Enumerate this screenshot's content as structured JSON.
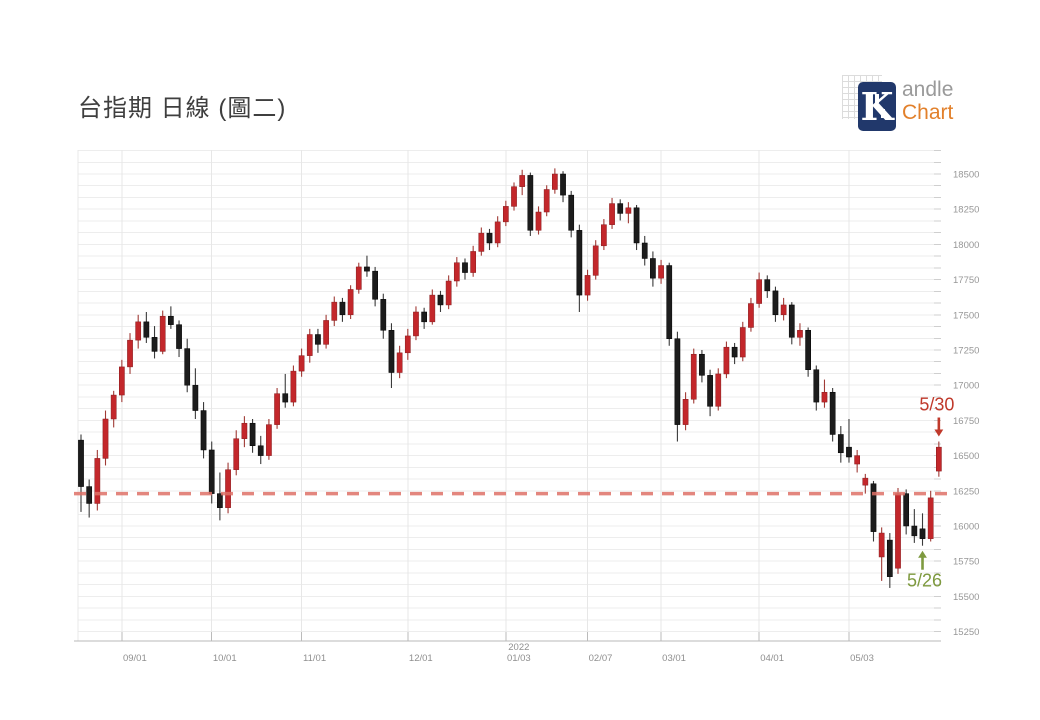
{
  "page": {
    "title": "台指期 日線 (圖二)"
  },
  "logo": {
    "k": "K",
    "line1": "andle",
    "line2": "Chart",
    "box_color": "#21386b",
    "line1_color": "#9a9a9a",
    "line2_color": "#e2802b"
  },
  "chart_data": {
    "type": "candlestick",
    "title": "台指期 日線 (圖二)",
    "grid": true,
    "up_color": "#c3272b",
    "down_color": "#1c1c1c",
    "y_axis": {
      "min": 15250,
      "max": 18500,
      "tick_step": 250,
      "ticks": [
        15250,
        15500,
        15750,
        16000,
        16250,
        16500,
        16750,
        17000,
        17250,
        17500,
        17750,
        18000,
        18250,
        18500
      ],
      "label_color": "#979797"
    },
    "x_axis": {
      "label_color": "#8f8f8f",
      "labels": [
        {
          "text": "09/01",
          "index": 5
        },
        {
          "text": "10/01",
          "index": 16
        },
        {
          "text": "11/01",
          "index": 27
        },
        {
          "text": "12/01",
          "index": 40
        },
        {
          "text": "01/03",
          "year_above": "2022",
          "index": 52
        },
        {
          "text": "02/07",
          "index": 62
        },
        {
          "text": "03/01",
          "index": 71
        },
        {
          "text": "04/01",
          "index": 83
        },
        {
          "text": "05/03",
          "index": 94
        }
      ]
    },
    "support_line": {
      "price": 16230,
      "color": "#df7168",
      "style": "dashed"
    },
    "annotations": [
      {
        "text": "5/30",
        "color": "#c0392b",
        "index": 105,
        "direction": "down"
      },
      {
        "text": "5/26",
        "color": "#7e9a3f",
        "index": 103,
        "direction": "up"
      }
    ],
    "candles": [
      [
        16610,
        16650,
        16100,
        16280
      ],
      [
        16280,
        16330,
        16060,
        16160
      ],
      [
        16160,
        16540,
        16110,
        16480
      ],
      [
        16480,
        16820,
        16430,
        16760
      ],
      [
        16760,
        16960,
        16700,
        16930
      ],
      [
        16930,
        17180,
        16880,
        17130
      ],
      [
        17130,
        17370,
        17080,
        17320
      ],
      [
        17320,
        17500,
        17260,
        17450
      ],
      [
        17450,
        17520,
        17300,
        17340
      ],
      [
        17340,
        17420,
        17190,
        17240
      ],
      [
        17240,
        17530,
        17220,
        17490
      ],
      [
        17490,
        17560,
        17400,
        17430
      ],
      [
        17430,
        17460,
        17200,
        17260
      ],
      [
        17260,
        17330,
        16950,
        17000
      ],
      [
        17000,
        17120,
        16760,
        16820
      ],
      [
        16820,
        16880,
        16480,
        16540
      ],
      [
        16540,
        16600,
        16160,
        16230
      ],
      [
        16230,
        16380,
        16040,
        16130
      ],
      [
        16130,
        16450,
        16090,
        16400
      ],
      [
        16400,
        16680,
        16360,
        16620
      ],
      [
        16620,
        16780,
        16560,
        16730
      ],
      [
        16730,
        16760,
        16520,
        16570
      ],
      [
        16570,
        16640,
        16440,
        16500
      ],
      [
        16500,
        16760,
        16470,
        16720
      ],
      [
        16720,
        16980,
        16690,
        16940
      ],
      [
        16940,
        17080,
        16840,
        16880
      ],
      [
        16880,
        17140,
        16850,
        17100
      ],
      [
        17100,
        17260,
        17060,
        17210
      ],
      [
        17210,
        17400,
        17160,
        17360
      ],
      [
        17360,
        17400,
        17230,
        17290
      ],
      [
        17290,
        17500,
        17260,
        17460
      ],
      [
        17460,
        17630,
        17420,
        17590
      ],
      [
        17590,
        17620,
        17450,
        17500
      ],
      [
        17500,
        17710,
        17470,
        17680
      ],
      [
        17680,
        17870,
        17650,
        17840
      ],
      [
        17840,
        17920,
        17770,
        17810
      ],
      [
        17810,
        17840,
        17560,
        17610
      ],
      [
        17610,
        17650,
        17330,
        17390
      ],
      [
        17390,
        17440,
        16980,
        17090
      ],
      [
        17090,
        17280,
        17050,
        17230
      ],
      [
        17230,
        17400,
        17180,
        17350
      ],
      [
        17350,
        17560,
        17320,
        17520
      ],
      [
        17520,
        17550,
        17400,
        17450
      ],
      [
        17450,
        17680,
        17430,
        17640
      ],
      [
        17640,
        17670,
        17520,
        17570
      ],
      [
        17570,
        17780,
        17540,
        17740
      ],
      [
        17740,
        17910,
        17700,
        17870
      ],
      [
        17870,
        17900,
        17750,
        17800
      ],
      [
        17800,
        17990,
        17770,
        17950
      ],
      [
        17950,
        18120,
        17920,
        18080
      ],
      [
        18080,
        18110,
        17960,
        18010
      ],
      [
        18010,
        18200,
        17980,
        18160
      ],
      [
        18160,
        18310,
        18130,
        18270
      ],
      [
        18270,
        18440,
        18240,
        18410
      ],
      [
        18410,
        18530,
        18350,
        18490
      ],
      [
        18490,
        18510,
        18060,
        18100
      ],
      [
        18100,
        18270,
        18070,
        18230
      ],
      [
        18230,
        18420,
        18200,
        18390
      ],
      [
        18390,
        18540,
        18360,
        18500
      ],
      [
        18500,
        18520,
        18300,
        18350
      ],
      [
        18350,
        18380,
        18050,
        18100
      ],
      [
        18100,
        18140,
        17520,
        17640
      ],
      [
        17640,
        17820,
        17600,
        17780
      ],
      [
        17780,
        18030,
        17750,
        17990
      ],
      [
        17990,
        18180,
        17960,
        18140
      ],
      [
        18140,
        18330,
        18110,
        18290
      ],
      [
        18290,
        18320,
        18170,
        18220
      ],
      [
        18220,
        18300,
        18150,
        18260
      ],
      [
        18260,
        18280,
        17960,
        18010
      ],
      [
        18010,
        18060,
        17850,
        17900
      ],
      [
        17900,
        17950,
        17700,
        17760
      ],
      [
        17760,
        17890,
        17720,
        17850
      ],
      [
        17850,
        17870,
        17280,
        17330
      ],
      [
        17330,
        17380,
        16600,
        16720
      ],
      [
        16720,
        16950,
        16680,
        16900
      ],
      [
        16900,
        17260,
        16870,
        17220
      ],
      [
        17220,
        17250,
        17020,
        17070
      ],
      [
        17070,
        17110,
        16780,
        16850
      ],
      [
        16850,
        17120,
        16820,
        17080
      ],
      [
        17080,
        17310,
        17050,
        17270
      ],
      [
        17270,
        17300,
        17150,
        17200
      ],
      [
        17200,
        17450,
        17170,
        17410
      ],
      [
        17410,
        17620,
        17380,
        17580
      ],
      [
        17580,
        17800,
        17550,
        17750
      ],
      [
        17750,
        17780,
        17620,
        17670
      ],
      [
        17670,
        17700,
        17450,
        17500
      ],
      [
        17500,
        17620,
        17460,
        17570
      ],
      [
        17570,
        17590,
        17290,
        17340
      ],
      [
        17340,
        17440,
        17280,
        17390
      ],
      [
        17390,
        17410,
        17060,
        17110
      ],
      [
        17110,
        17140,
        16820,
        16880
      ],
      [
        16880,
        17040,
        16840,
        16950
      ],
      [
        16950,
        16980,
        16600,
        16650
      ],
      [
        16650,
        16710,
        16450,
        16520
      ],
      [
        16560,
        16760,
        16450,
        16490
      ],
      [
        16440,
        16540,
        16380,
        16500
      ],
      [
        16290,
        16370,
        16230,
        16340
      ],
      [
        16300,
        16320,
        15890,
        15960
      ],
      [
        15780,
        15990,
        15610,
        15950
      ],
      [
        15900,
        15950,
        15560,
        15640
      ],
      [
        15700,
        16270,
        15660,
        16230
      ],
      [
        16230,
        16260,
        15940,
        16000
      ],
      [
        16000,
        16120,
        15880,
        15930
      ],
      [
        15980,
        16090,
        15860,
        15910
      ],
      [
        15910,
        16250,
        15890,
        16200
      ],
      [
        16390,
        16600,
        16350,
        16560
      ]
    ]
  }
}
